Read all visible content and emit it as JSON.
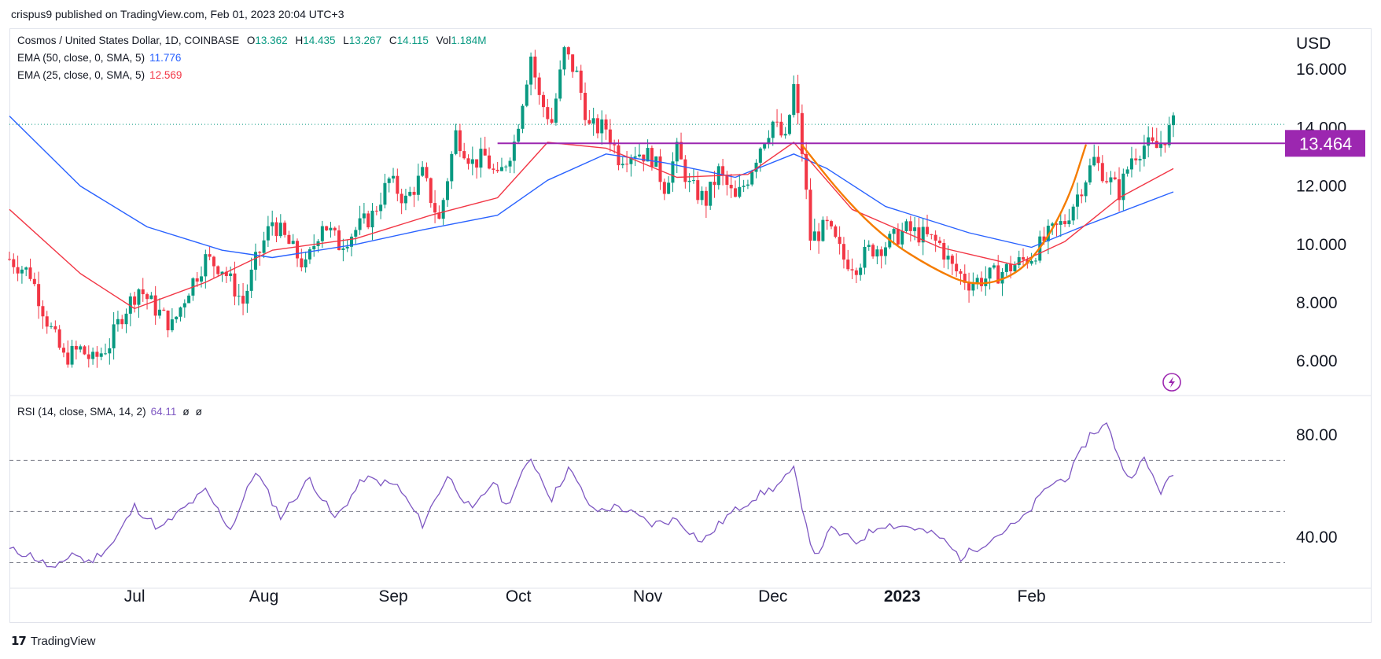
{
  "publisher_line": "crispus9 published on TradingView.com, Feb 01, 2023 20:04 UTC+3",
  "legend": {
    "symbol": "Cosmos / United States Dollar, 1D, COINBASE",
    "ohlc": {
      "o_label": "O",
      "o": "13.362",
      "h_label": "H",
      "h": "14.435",
      "l_label": "L",
      "l": "13.267",
      "c_label": "C",
      "c": "14.115",
      "vol_label": "Vol",
      "vol": "1.184M"
    },
    "ema50_label": "EMA (50, close, 0, SMA, 5)",
    "ema50_value": "11.776",
    "ema25_label": "EMA (25, close, 0, SMA, 5)",
    "ema25_value": "12.569",
    "rsi_label": "RSI (14, close, SMA, 14, 2)",
    "rsi_value": "64.11",
    "rsi_null1": "ø",
    "rsi_null2": "ø"
  },
  "footer_brand": "TradingView",
  "colors": {
    "up": "#089981",
    "down": "#f23645",
    "ema50": "#2962ff",
    "ema25": "#f23645",
    "rsi": "#7e57c2",
    "resistance": "#9c27b0",
    "cup": "#f57c00"
  },
  "chart_data": [
    {
      "type": "candlestick",
      "title": "Cosmos / United States Dollar, 1D, COINBASE",
      "currency_label": "USD",
      "ylim": [
        4.9,
        17.3
      ],
      "y_ticks": [
        "16.000",
        "14.000",
        "12.000",
        "10.000",
        "8.000",
        "6.000"
      ],
      "y_tick_values": [
        16,
        14,
        12,
        10,
        8,
        6
      ],
      "x_ticks": [
        "Jul",
        "Aug",
        "Sep",
        "Oct",
        "Nov",
        "Dec",
        "2023",
        "Feb"
      ],
      "x_range": [
        "2022-06-01",
        "2023-03-07"
      ],
      "x_tick_dates": [
        "2022-07-01",
        "2022-08-01",
        "2022-09-01",
        "2022-10-01",
        "2022-11-01",
        "2022-12-01",
        "2023-01-01",
        "2023-02-01"
      ],
      "last_price_line": 14.115,
      "resistance_level": 13.464,
      "resistance_label": "13.464",
      "resistance_start": "2022-09-26",
      "close_path": [
        {
          "date": "2022-06-01",
          "close": 9.5
        },
        {
          "date": "2022-06-06",
          "close": 9.0
        },
        {
          "date": "2022-06-10",
          "close": 7.4
        },
        {
          "date": "2022-06-14",
          "close": 6.1
        },
        {
          "date": "2022-06-18",
          "close": 6.4
        },
        {
          "date": "2022-06-21",
          "close": 6.0
        },
        {
          "date": "2022-06-25",
          "close": 6.6
        },
        {
          "date": "2022-06-28",
          "close": 7.6
        },
        {
          "date": "2022-07-02",
          "close": 8.5
        },
        {
          "date": "2022-07-06",
          "close": 7.8
        },
        {
          "date": "2022-07-10",
          "close": 7.2
        },
        {
          "date": "2022-07-14",
          "close": 8.5
        },
        {
          "date": "2022-07-18",
          "close": 9.5
        },
        {
          "date": "2022-07-22",
          "close": 9.2
        },
        {
          "date": "2022-07-27",
          "close": 8.0
        },
        {
          "date": "2022-07-30",
          "close": 9.4
        },
        {
          "date": "2022-08-03",
          "close": 10.8
        },
        {
          "date": "2022-08-07",
          "close": 10.0
        },
        {
          "date": "2022-08-11",
          "close": 9.2
        },
        {
          "date": "2022-08-15",
          "close": 10.8
        },
        {
          "date": "2022-08-19",
          "close": 10.0
        },
        {
          "date": "2022-08-23",
          "close": 10.5
        },
        {
          "date": "2022-08-27",
          "close": 11.0
        },
        {
          "date": "2022-08-31",
          "close": 12.2
        },
        {
          "date": "2022-09-04",
          "close": 11.5
        },
        {
          "date": "2022-09-08",
          "close": 12.4
        },
        {
          "date": "2022-09-12",
          "close": 10.8
        },
        {
          "date": "2022-09-16",
          "close": 13.8
        },
        {
          "date": "2022-09-20",
          "close": 12.8
        },
        {
          "date": "2022-09-23",
          "close": 13.0
        },
        {
          "date": "2022-09-26",
          "close": 12.2
        },
        {
          "date": "2022-09-30",
          "close": 13.5
        },
        {
          "date": "2022-10-04",
          "close": 16.5
        },
        {
          "date": "2022-10-06",
          "close": 15.0
        },
        {
          "date": "2022-10-09",
          "close": 14.2
        },
        {
          "date": "2022-10-12",
          "close": 16.6
        },
        {
          "date": "2022-10-15",
          "close": 15.8
        },
        {
          "date": "2022-10-18",
          "close": 14.0
        },
        {
          "date": "2022-10-22",
          "close": 14.0
        },
        {
          "date": "2022-10-25",
          "close": 13.0
        },
        {
          "date": "2022-10-29",
          "close": 13.2
        },
        {
          "date": "2022-11-02",
          "close": 13.0
        },
        {
          "date": "2022-11-05",
          "close": 12.0
        },
        {
          "date": "2022-11-08",
          "close": 13.2
        },
        {
          "date": "2022-11-11",
          "close": 12.0
        },
        {
          "date": "2022-11-15",
          "close": 11.5
        },
        {
          "date": "2022-11-18",
          "close": 12.5
        },
        {
          "date": "2022-11-22",
          "close": 11.5
        },
        {
          "date": "2022-11-25",
          "close": 12.3
        },
        {
          "date": "2022-11-28",
          "close": 13.4
        },
        {
          "date": "2022-12-01",
          "close": 14.2
        },
        {
          "date": "2022-12-04",
          "close": 13.5
        },
        {
          "date": "2022-12-06",
          "close": 15.4
        },
        {
          "date": "2022-12-08",
          "close": 13.2
        },
        {
          "date": "2022-12-10",
          "close": 10.2
        },
        {
          "date": "2022-12-14",
          "close": 10.6
        },
        {
          "date": "2022-12-18",
          "close": 9.5
        },
        {
          "date": "2022-12-21",
          "close": 9.3
        },
        {
          "date": "2022-12-24",
          "close": 9.8
        },
        {
          "date": "2022-12-28",
          "close": 10.0
        },
        {
          "date": "2023-01-02",
          "close": 10.5
        },
        {
          "date": "2023-01-06",
          "close": 10.3
        },
        {
          "date": "2023-01-10",
          "close": 10.0
        },
        {
          "date": "2023-01-13",
          "close": 9.2
        },
        {
          "date": "2023-01-17",
          "close": 8.7
        },
        {
          "date": "2023-01-20",
          "close": 8.8
        },
        {
          "date": "2023-01-24",
          "close": 9.0
        },
        {
          "date": "2023-01-28",
          "close": 9.3
        },
        {
          "date": "2023-02-01",
          "close": 9.6
        },
        {
          "date": "2023-02-05",
          "close": 10.3
        },
        {
          "date": "2023-02-09",
          "close": 10.8
        },
        {
          "date": "2023-02-13",
          "close": 12.0
        },
        {
          "date": "2023-02-16",
          "close": 12.9
        },
        {
          "date": "2023-02-19",
          "close": 12.3
        },
        {
          "date": "2023-02-22",
          "close": 11.8
        },
        {
          "date": "2023-02-25",
          "close": 13.0
        },
        {
          "date": "2023-02-28",
          "close": 13.4
        },
        {
          "date": "2023-03-03",
          "close": 13.3
        },
        {
          "date": "2023-03-07",
          "close": 14.1
        }
      ],
      "ema50_path": [
        {
          "date": "2022-06-01",
          "value": 14.4
        },
        {
          "date": "2022-06-18",
          "value": 12.0
        },
        {
          "date": "2022-07-04",
          "value": 10.6
        },
        {
          "date": "2022-07-22",
          "value": 9.8
        },
        {
          "date": "2022-08-03",
          "value": 9.55
        },
        {
          "date": "2022-08-23",
          "value": 10.0
        },
        {
          "date": "2022-09-08",
          "value": 10.5
        },
        {
          "date": "2022-09-26",
          "value": 11.0
        },
        {
          "date": "2022-10-08",
          "value": 12.2
        },
        {
          "date": "2022-10-22",
          "value": 13.1
        },
        {
          "date": "2022-11-05",
          "value": 12.8
        },
        {
          "date": "2022-11-22",
          "value": 12.3
        },
        {
          "date": "2022-12-06",
          "value": 13.1
        },
        {
          "date": "2022-12-14",
          "value": 12.6
        },
        {
          "date": "2022-12-28",
          "value": 11.3
        },
        {
          "date": "2023-01-17",
          "value": 10.4
        },
        {
          "date": "2023-02-01",
          "value": 9.9
        },
        {
          "date": "2023-02-13",
          "value": 10.6
        },
        {
          "date": "2023-03-07",
          "value": 11.8
        }
      ],
      "ema25_path": [
        {
          "date": "2022-06-01",
          "value": 11.2
        },
        {
          "date": "2022-06-18",
          "value": 9.0
        },
        {
          "date": "2022-07-01",
          "value": 7.8
        },
        {
          "date": "2022-07-18",
          "value": 8.7
        },
        {
          "date": "2022-08-03",
          "value": 9.8
        },
        {
          "date": "2022-08-23",
          "value": 10.2
        },
        {
          "date": "2022-09-10",
          "value": 11.0
        },
        {
          "date": "2022-09-26",
          "value": 11.6
        },
        {
          "date": "2022-10-08",
          "value": 13.5
        },
        {
          "date": "2022-10-22",
          "value": 13.3
        },
        {
          "date": "2022-11-08",
          "value": 12.3
        },
        {
          "date": "2022-11-25",
          "value": 12.4
        },
        {
          "date": "2022-12-06",
          "value": 13.5
        },
        {
          "date": "2022-12-20",
          "value": 11.2
        },
        {
          "date": "2023-01-10",
          "value": 9.9
        },
        {
          "date": "2023-01-28",
          "value": 9.3
        },
        {
          "date": "2023-02-09",
          "value": 10.1
        },
        {
          "date": "2023-02-22",
          "value": 11.6
        },
        {
          "date": "2023-03-07",
          "value": 12.6
        }
      ],
      "cup_pattern": [
        {
          "date": "2022-12-08",
          "value": 13.4
        },
        {
          "date": "2022-12-18",
          "value": 11.6
        },
        {
          "date": "2022-12-28",
          "value": 10.2
        },
        {
          "date": "2023-01-08",
          "value": 9.2
        },
        {
          "date": "2023-01-18",
          "value": 8.55
        },
        {
          "date": "2023-01-28",
          "value": 8.9
        },
        {
          "date": "2023-02-04",
          "value": 10.0
        },
        {
          "date": "2023-02-10",
          "value": 11.6
        },
        {
          "date": "2023-02-14",
          "value": 13.4
        }
      ]
    },
    {
      "type": "line",
      "title": "RSI (14, close, SMA, 14, 2)",
      "ylim": [
        20,
        95
      ],
      "y_ticks": [
        "80.00",
        "40.00"
      ],
      "y_tick_values": [
        80,
        40
      ],
      "bands": [
        70,
        50,
        30
      ],
      "value_path": [
        {
          "date": "2022-06-01",
          "value": 35
        },
        {
          "date": "2022-06-06",
          "value": 33
        },
        {
          "date": "2022-06-12",
          "value": 27
        },
        {
          "date": "2022-06-16",
          "value": 34
        },
        {
          "date": "2022-06-20",
          "value": 30
        },
        {
          "date": "2022-06-26",
          "value": 38
        },
        {
          "date": "2022-07-01",
          "value": 52
        },
        {
          "date": "2022-07-07",
          "value": 43
        },
        {
          "date": "2022-07-12",
          "value": 50
        },
        {
          "date": "2022-07-18",
          "value": 58
        },
        {
          "date": "2022-07-24",
          "value": 43
        },
        {
          "date": "2022-07-30",
          "value": 66
        },
        {
          "date": "2022-08-05",
          "value": 48
        },
        {
          "date": "2022-08-12",
          "value": 63
        },
        {
          "date": "2022-08-18",
          "value": 47
        },
        {
          "date": "2022-08-25",
          "value": 63
        },
        {
          "date": "2022-09-02",
          "value": 60
        },
        {
          "date": "2022-09-08",
          "value": 45
        },
        {
          "date": "2022-09-14",
          "value": 64
        },
        {
          "date": "2022-09-20",
          "value": 50
        },
        {
          "date": "2022-09-25",
          "value": 62
        },
        {
          "date": "2022-09-28",
          "value": 52
        },
        {
          "date": "2022-10-04",
          "value": 71
        },
        {
          "date": "2022-10-09",
          "value": 55
        },
        {
          "date": "2022-10-13",
          "value": 67
        },
        {
          "date": "2022-10-19",
          "value": 50
        },
        {
          "date": "2022-10-25",
          "value": 52
        },
        {
          "date": "2022-11-02",
          "value": 45
        },
        {
          "date": "2022-11-08",
          "value": 47
        },
        {
          "date": "2022-11-14",
          "value": 38
        },
        {
          "date": "2022-11-20",
          "value": 48
        },
        {
          "date": "2022-11-26",
          "value": 55
        },
        {
          "date": "2022-12-02",
          "value": 60
        },
        {
          "date": "2022-12-06",
          "value": 66
        },
        {
          "date": "2022-12-11",
          "value": 32
        },
        {
          "date": "2022-12-15",
          "value": 43
        },
        {
          "date": "2022-12-21",
          "value": 38
        },
        {
          "date": "2022-12-27",
          "value": 45
        },
        {
          "date": "2023-01-03",
          "value": 44
        },
        {
          "date": "2023-01-10",
          "value": 40
        },
        {
          "date": "2023-01-15",
          "value": 32
        },
        {
          "date": "2023-01-22",
          "value": 39
        },
        {
          "date": "2023-01-30",
          "value": 47
        },
        {
          "date": "2023-02-05",
          "value": 60
        },
        {
          "date": "2023-02-10",
          "value": 64
        },
        {
          "date": "2023-02-15",
          "value": 80
        },
        {
          "date": "2023-02-19",
          "value": 84
        },
        {
          "date": "2023-02-24",
          "value": 63
        },
        {
          "date": "2023-02-28",
          "value": 70
        },
        {
          "date": "2023-03-04",
          "value": 58
        },
        {
          "date": "2023-03-07",
          "value": 64.11
        }
      ]
    }
  ]
}
